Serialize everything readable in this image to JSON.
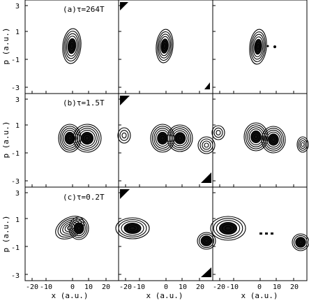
{
  "figure": {
    "ylabel": "p (a.u.)",
    "xlabel": "x (a.u.)",
    "yticks": [
      "3",
      "1",
      "-1",
      "-3"
    ],
    "xticks": [
      "-20",
      "-10",
      "0",
      "10",
      "20"
    ],
    "rows": [
      {
        "label": "(a)τ=264T"
      },
      {
        "label": "(b)τ=1.5T"
      },
      {
        "label": "(c)τ=0.2T"
      }
    ]
  }
}
